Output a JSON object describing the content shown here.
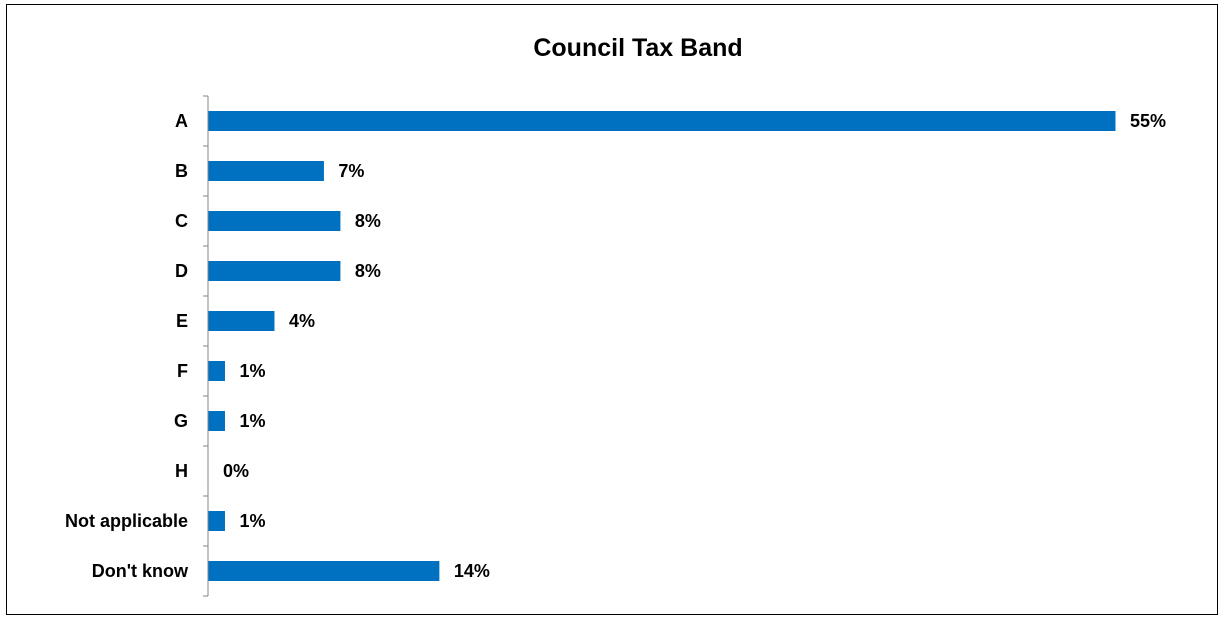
{
  "chart_data": {
    "type": "bar",
    "orientation": "horizontal",
    "title": "Council Tax Band",
    "xlabel": "",
    "ylabel": "",
    "categories": [
      "A",
      "B",
      "C",
      "D",
      "E",
      "F",
      "G",
      "H",
      "Not applicable",
      "Don't know"
    ],
    "values": [
      55,
      7,
      8,
      8,
      4,
      1,
      1,
      0,
      1,
      14
    ],
    "value_labels": [
      "55%",
      "7%",
      "8%",
      "8%",
      "4%",
      "1%",
      "1%",
      "0%",
      "1%",
      "14%"
    ],
    "xlim": [
      0,
      55
    ],
    "grid": false,
    "legend": "none",
    "bar_color": "#0070C0"
  }
}
